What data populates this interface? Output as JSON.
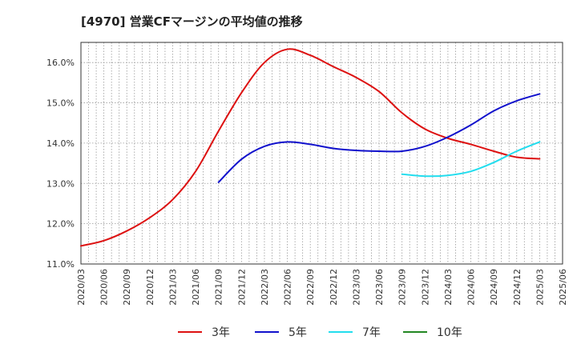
{
  "chart_data": {
    "type": "line",
    "title": "[4970]  営業CFマージンの平均値の推移",
    "xlabel": "",
    "ylabel": "",
    "x": [
      "2020/03",
      "2020/06",
      "2020/09",
      "2020/12",
      "2021/03",
      "2021/06",
      "2021/09",
      "2021/12",
      "2022/03",
      "2022/06",
      "2022/09",
      "2022/12",
      "2023/03",
      "2023/06",
      "2023/09",
      "2023/12",
      "2024/03",
      "2024/06",
      "2024/09",
      "2024/12",
      "2025/03",
      "2025/06"
    ],
    "ylim": [
      11.0,
      16.5
    ],
    "yticks": [
      11.0,
      12.0,
      13.0,
      14.0,
      15.0,
      16.0
    ],
    "ytick_labels": [
      "11.0%",
      "12.0%",
      "13.0%",
      "14.0%",
      "15.0%",
      "16.0%"
    ],
    "grid": true,
    "legend_position": "bottom",
    "series": [
      {
        "name": "3年",
        "color": "#dd1111",
        "values": [
          11.45,
          11.58,
          11.82,
          12.15,
          12.6,
          13.3,
          14.3,
          15.25,
          16.0,
          16.33,
          16.18,
          15.9,
          15.63,
          15.28,
          14.75,
          14.35,
          14.12,
          13.97,
          13.8,
          13.65,
          13.61,
          null
        ]
      },
      {
        "name": "5年",
        "color": "#1111cc",
        "values": [
          null,
          null,
          null,
          null,
          null,
          null,
          13.03,
          13.6,
          13.92,
          14.03,
          13.97,
          13.87,
          13.82,
          13.8,
          13.8,
          13.92,
          14.15,
          14.45,
          14.8,
          15.05,
          15.22,
          null
        ]
      },
      {
        "name": "7年",
        "color": "#22ddee",
        "values": [
          null,
          null,
          null,
          null,
          null,
          null,
          null,
          null,
          null,
          null,
          null,
          null,
          null,
          null,
          13.23,
          13.18,
          13.2,
          13.3,
          13.52,
          13.8,
          14.03,
          null
        ]
      },
      {
        "name": "10年",
        "color": "#228822",
        "values": [
          null,
          null,
          null,
          null,
          null,
          null,
          null,
          null,
          null,
          null,
          null,
          null,
          null,
          null,
          null,
          null,
          null,
          null,
          null,
          null,
          null,
          null
        ]
      }
    ]
  }
}
